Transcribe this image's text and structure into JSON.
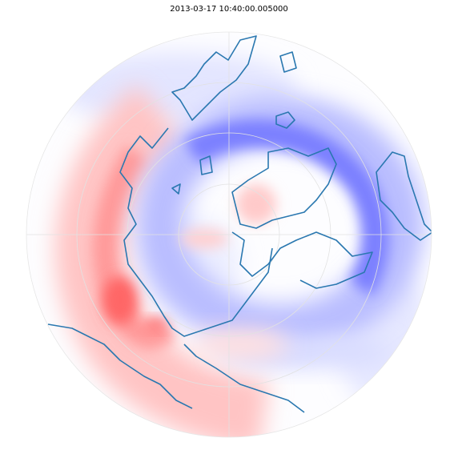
{
  "title": "2013-03-17 10:40:00.005000"
}
